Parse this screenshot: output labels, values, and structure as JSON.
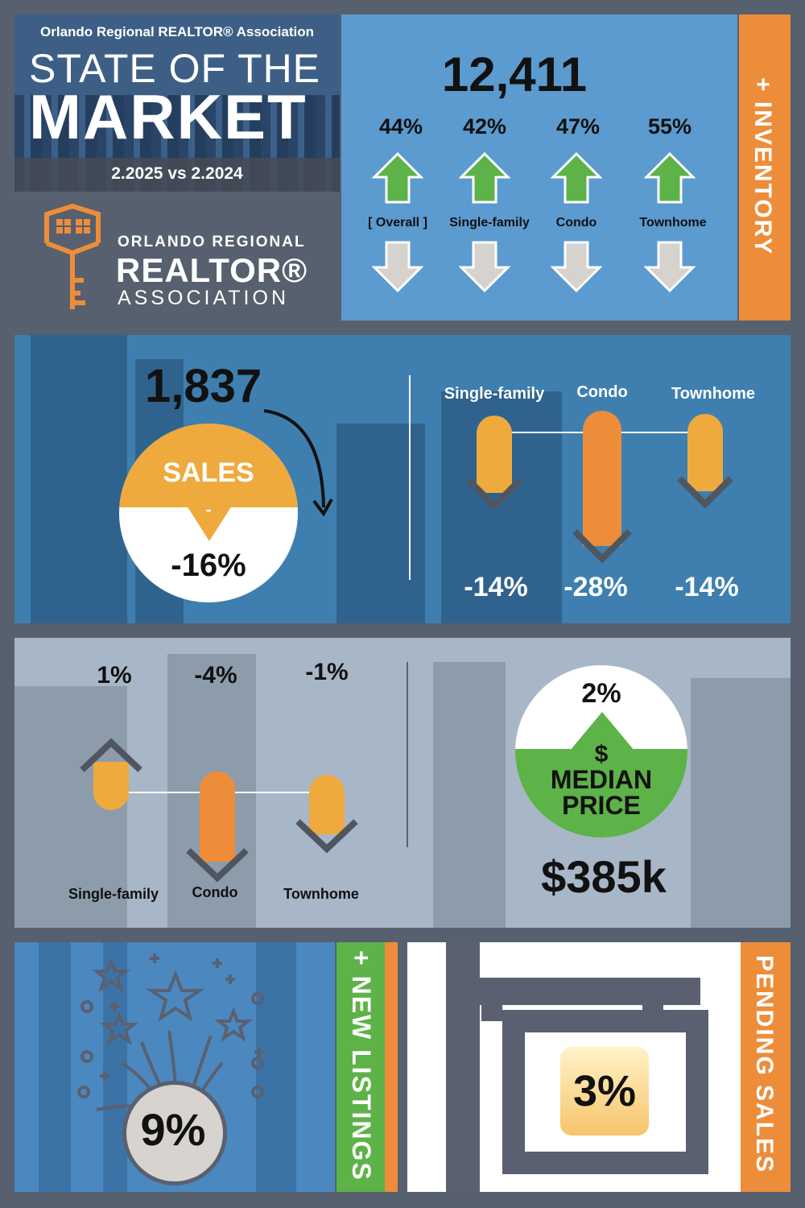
{
  "header": {
    "org": "Orlando Regional REALTOR® Association",
    "title_line1": "STATE OF THE",
    "title_line2": "MARKET",
    "date_range": "2.2025 vs 2.2024"
  },
  "logo": {
    "line1": "ORLANDO REGIONAL",
    "line2": "REALTOR®",
    "line3": "ASSOCIATION"
  },
  "inventory": {
    "section_label": "+ INVENTORY",
    "total": "12,411",
    "items": [
      {
        "label": "[ Overall ]",
        "pct": "44%",
        "direction": "up"
      },
      {
        "label": "Single-family",
        "pct": "42%",
        "direction": "up"
      },
      {
        "label": "Condo",
        "pct": "47%",
        "direction": "up"
      },
      {
        "label": "Townhome",
        "pct": "55%",
        "direction": "up"
      }
    ]
  },
  "sales": {
    "total": "1,837",
    "label": "SALES",
    "sign": "-",
    "pct": "-16%",
    "items": [
      {
        "label": "Single-family",
        "pct": "-14%",
        "direction": "down"
      },
      {
        "label": "Condo",
        "pct": "-28%",
        "direction": "down"
      },
      {
        "label": "Townhome",
        "pct": "-14%",
        "direction": "down"
      }
    ]
  },
  "price": {
    "items": [
      {
        "label": "Single-family",
        "pct": "1%",
        "direction": "up"
      },
      {
        "label": "Condo",
        "pct": "-4%",
        "direction": "down"
      },
      {
        "label": "Townhome",
        "pct": "-1%",
        "direction": "down"
      }
    ],
    "median": {
      "pct": "2%",
      "symbol": "$",
      "label_line1": "MEDIAN",
      "label_line2": "PRICE",
      "value": "$385k"
    }
  },
  "new_listings": {
    "section_label": "+ NEW LISTINGS",
    "pct": "9%"
  },
  "pending_sales": {
    "section_label": "PENDING SALES",
    "pct": "3%"
  },
  "colors": {
    "orange": "#ed8d3a",
    "gold": "#efaa3d",
    "green": "#5db248",
    "slate": "#56606e",
    "blue": "#5c9bcf"
  }
}
